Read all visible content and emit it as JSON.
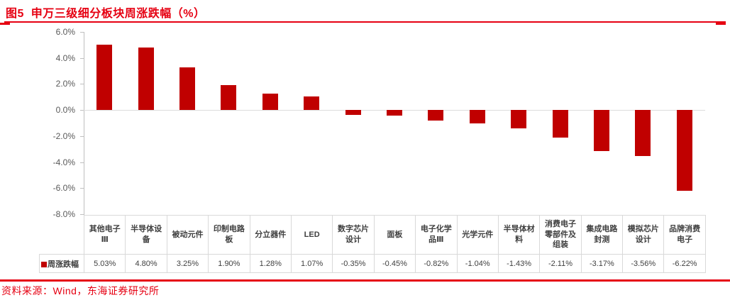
{
  "header": {
    "figure_title": "图5  申万三级细分板块周涨跌幅（%）"
  },
  "footer": {
    "source_note": "资料来源：Wind，东海证券研究所"
  },
  "colors": {
    "accent_red": "#E60012",
    "bar_red": "#C00000",
    "axis_gray": "#BFBFBF",
    "zero_line_gray": "#DCDCDC",
    "tick_label_gray": "#595959",
    "table_border_gray": "#D9D9D9",
    "table_text_gray": "#404040"
  },
  "chart_data": {
    "type": "bar",
    "title": "申万三级细分板块周涨跌幅（%）",
    "series_name": "周涨跌幅",
    "categories": [
      "其他电子Ⅲ",
      "半导体设备",
      "被动元件",
      "印制电路板",
      "分立器件",
      "LED",
      "数字芯片设计",
      "面板",
      "电子化学品Ⅲ",
      "光学元件",
      "半导体材料",
      "消费电子零部件及组装",
      "集成电路封测",
      "模拟芯片设计",
      "品牌消费电子"
    ],
    "values": [
      5.03,
      4.8,
      3.25,
      1.9,
      1.28,
      1.07,
      -0.35,
      -0.45,
      -0.82,
      -1.04,
      -1.43,
      -2.11,
      -3.17,
      -3.56,
      -6.22
    ],
    "value_labels": [
      "5.03%",
      "4.80%",
      "3.25%",
      "1.90%",
      "1.28%",
      "1.07%",
      "-0.35%",
      "-0.45%",
      "-0.82%",
      "-1.04%",
      "-1.43%",
      "-2.11%",
      "-3.17%",
      "-3.56%",
      "-6.22%"
    ],
    "ylabel": "",
    "xlabel": "",
    "ylim": [
      -8,
      6
    ],
    "ytick_values": [
      6,
      4,
      2,
      0,
      -2,
      -4,
      -6,
      -8
    ],
    "ytick_labels": [
      "6.0%",
      "4.0%",
      "2.0%",
      "0.0%",
      "-2.0%",
      "-4.0%",
      "-6.0%",
      "-8.0%"
    ],
    "grid": false,
    "legend_position": "table-left",
    "data_table_shown": true
  }
}
